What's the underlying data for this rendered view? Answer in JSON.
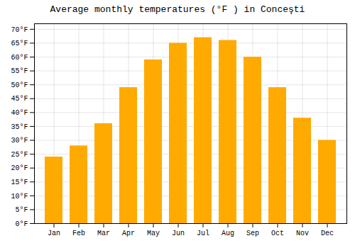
{
  "chart_data": {
    "type": "bar",
    "title": "Average monthly temperatures (°F ) in Conceşti",
    "categories": [
      "Jan",
      "Feb",
      "Mar",
      "Apr",
      "May",
      "Jun",
      "Jul",
      "Aug",
      "Sep",
      "Oct",
      "Nov",
      "Dec"
    ],
    "values": [
      24,
      28,
      36,
      49,
      59,
      65,
      67,
      66,
      60,
      49,
      38,
      30
    ],
    "color": "#FFAA00",
    "ylim": [
      0,
      72
    ],
    "yticks": [
      {
        "value": 0,
        "label": "0°F"
      },
      {
        "value": 5,
        "label": "5°F"
      },
      {
        "value": 10,
        "label": "10°F"
      },
      {
        "value": 15,
        "label": "15°F"
      },
      {
        "value": 20,
        "label": "20°F"
      },
      {
        "value": 25,
        "label": "25°F"
      },
      {
        "value": 30,
        "label": "30°F"
      },
      {
        "value": 35,
        "label": "35°F"
      },
      {
        "value": 40,
        "label": "40°F"
      },
      {
        "value": 45,
        "label": "45°F"
      },
      {
        "value": 50,
        "label": "50°F"
      },
      {
        "value": 55,
        "label": "55°F"
      },
      {
        "value": 60,
        "label": "60°F"
      },
      {
        "value": 65,
        "label": "65°F"
      },
      {
        "value": 70,
        "label": "70°F"
      }
    ],
    "grid": true
  }
}
